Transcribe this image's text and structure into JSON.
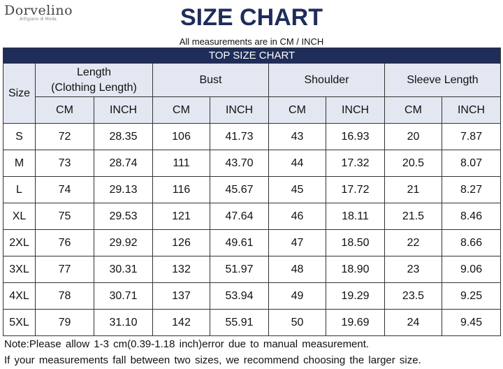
{
  "logo": {
    "brand": "Dorvelino",
    "tagline": "Artigiano di Moda"
  },
  "header": {
    "title": "SIZE CHART",
    "subtitle": "All measurements are in CM / INCH"
  },
  "table": {
    "banner": "TOP SIZE CHART",
    "size_header": "Size",
    "groups": [
      [
        "Length",
        "(Clothing Length)"
      ],
      [
        "Bust"
      ],
      [
        "Shoulder"
      ],
      [
        "Sleeve Length"
      ]
    ],
    "units": [
      "CM",
      "INCH",
      "CM",
      "INCH",
      "CM",
      "INCH",
      "CM",
      "INCH"
    ],
    "rows": [
      [
        "S",
        "72",
        "28.35",
        "106",
        "41.73",
        "43",
        "16.93",
        "20",
        "7.87"
      ],
      [
        "M",
        "73",
        "28.74",
        "111",
        "43.70",
        "44",
        "17.32",
        "20.5",
        "8.07"
      ],
      [
        "L",
        "74",
        "29.13",
        "116",
        "45.67",
        "45",
        "17.72",
        "21",
        "8.27"
      ],
      [
        "XL",
        "75",
        "29.53",
        "121",
        "47.64",
        "46",
        "18.11",
        "21.5",
        "8.46"
      ],
      [
        "2XL",
        "76",
        "29.92",
        "126",
        "49.61",
        "47",
        "18.50",
        "22",
        "8.66"
      ],
      [
        "3XL",
        "77",
        "30.31",
        "132",
        "51.97",
        "48",
        "18.90",
        "23",
        "9.06"
      ],
      [
        "4XL",
        "78",
        "30.71",
        "137",
        "53.94",
        "49",
        "19.29",
        "23.5",
        "9.25"
      ],
      [
        "5XL",
        "79",
        "31.10",
        "142",
        "55.91",
        "50",
        "19.69",
        "24",
        "9.45"
      ]
    ]
  },
  "notes": [
    "Note:Please allow 1-3 cm(0.39-1.18 inch)error due to manual measurement.",
    "If your measurements fall between two sizes, we recommend choosing the larger size."
  ]
}
